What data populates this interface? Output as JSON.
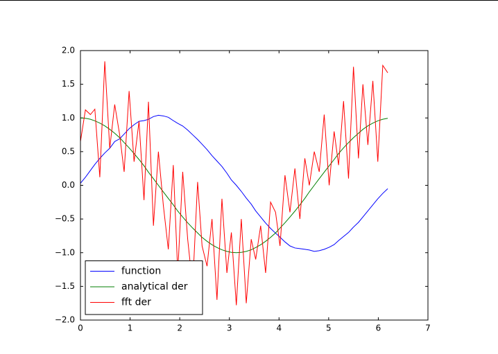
{
  "chart_data": {
    "type": "line",
    "x": [
      0,
      0.1,
      0.2,
      0.29,
      0.39,
      0.49,
      0.59,
      0.69,
      0.79,
      0.88,
      0.98,
      1.08,
      1.18,
      1.28,
      1.37,
      1.47,
      1.57,
      1.67,
      1.77,
      1.87,
      1.96,
      2.06,
      2.16,
      2.26,
      2.36,
      2.45,
      2.55,
      2.65,
      2.75,
      2.85,
      2.95,
      3.04,
      3.14,
      3.24,
      3.34,
      3.44,
      3.53,
      3.63,
      3.73,
      3.83,
      3.93,
      4.02,
      4.12,
      4.22,
      4.32,
      4.42,
      4.52,
      4.61,
      4.71,
      4.81,
      4.91,
      5.01,
      5.11,
      5.2,
      5.3,
      5.4,
      5.5,
      5.6,
      5.69,
      5.79,
      5.89,
      5.99,
      6.09,
      6.19
    ],
    "series": [
      {
        "name": "function",
        "color": "#0000ff",
        "values": [
          0.03,
          0.12,
          0.22,
          0.31,
          0.4,
          0.48,
          0.55,
          0.65,
          0.69,
          0.76,
          0.84,
          0.9,
          0.95,
          0.96,
          0.98,
          1.02,
          1.04,
          1.03,
          1.01,
          0.96,
          0.92,
          0.88,
          0.82,
          0.75,
          0.68,
          0.61,
          0.53,
          0.44,
          0.36,
          0.28,
          0.18,
          0.08,
          0,
          -0.09,
          -0.19,
          -0.28,
          -0.38,
          -0.47,
          -0.56,
          -0.64,
          -0.71,
          -0.77,
          -0.84,
          -0.9,
          -0.93,
          -0.94,
          -0.95,
          -0.96,
          -0.98,
          -0.97,
          -0.95,
          -0.92,
          -0.88,
          -0.82,
          -0.76,
          -0.7,
          -0.62,
          -0.55,
          -0.47,
          -0.38,
          -0.29,
          -0.2,
          -0.12,
          -0.05
        ]
      },
      {
        "name": "analytical der",
        "color": "#007f00",
        "values": [
          1,
          0.995,
          0.981,
          0.957,
          0.924,
          0.882,
          0.831,
          0.773,
          0.707,
          0.634,
          0.556,
          0.471,
          0.383,
          0.29,
          0.195,
          0.098,
          0,
          -0.098,
          -0.195,
          -0.29,
          -0.383,
          -0.471,
          -0.556,
          -0.634,
          -0.707,
          -0.773,
          -0.831,
          -0.882,
          -0.924,
          -0.957,
          -0.981,
          -0.995,
          -1,
          -0.995,
          -0.981,
          -0.957,
          -0.924,
          -0.882,
          -0.831,
          -0.773,
          -0.707,
          -0.634,
          -0.556,
          -0.471,
          -0.383,
          -0.29,
          -0.195,
          -0.098,
          0,
          0.098,
          0.195,
          0.29,
          0.383,
          0.471,
          0.556,
          0.634,
          0.707,
          0.773,
          0.831,
          0.882,
          0.924,
          0.957,
          0.981,
          0.995
        ]
      },
      {
        "name": "fft der",
        "color": "#ff0000",
        "values": [
          0.65,
          1.12,
          1.05,
          1.13,
          0.12,
          1.84,
          0.55,
          1.2,
          0.75,
          0.2,
          1.4,
          0.35,
          0.95,
          -0.22,
          1.24,
          -0.6,
          0.5,
          -0.3,
          -0.95,
          0.3,
          -1.3,
          0.2,
          -0.8,
          -1.5,
          0.05,
          -0.9,
          -1.2,
          -0.5,
          -1.7,
          -0.2,
          -1.3,
          -0.7,
          -1.78,
          -0.5,
          -1.75,
          -0.8,
          -1.1,
          -0.6,
          -1.3,
          -0.25,
          -0.4,
          -0.9,
          0.15,
          -0.4,
          0.25,
          -0.5,
          0.4,
          0,
          0.5,
          0.2,
          1.05,
          0,
          0.8,
          0.3,
          1.25,
          0.1,
          1.76,
          0.4,
          1.5,
          0.6,
          1.55,
          0.35,
          1.78,
          1.67
        ]
      }
    ],
    "xlim": [
      0,
      7
    ],
    "xticks": [
      0,
      1,
      2,
      3,
      4,
      5,
      6,
      7
    ],
    "ylim": [
      -2,
      2
    ],
    "yticks": [
      {
        "value": -2,
        "label": "−2.0"
      },
      {
        "value": -1.5,
        "label": "−1.5"
      },
      {
        "value": -1,
        "label": "−1.0"
      },
      {
        "value": -0.5,
        "label": "−0.5"
      },
      {
        "value": 0,
        "label": "0.0"
      },
      {
        "value": 0.5,
        "label": "0.5"
      },
      {
        "value": 1,
        "label": "1.0"
      },
      {
        "value": 1.5,
        "label": "1.5"
      },
      {
        "value": 2,
        "label": "2.0"
      }
    ],
    "grid": false,
    "legend": "lower left"
  }
}
